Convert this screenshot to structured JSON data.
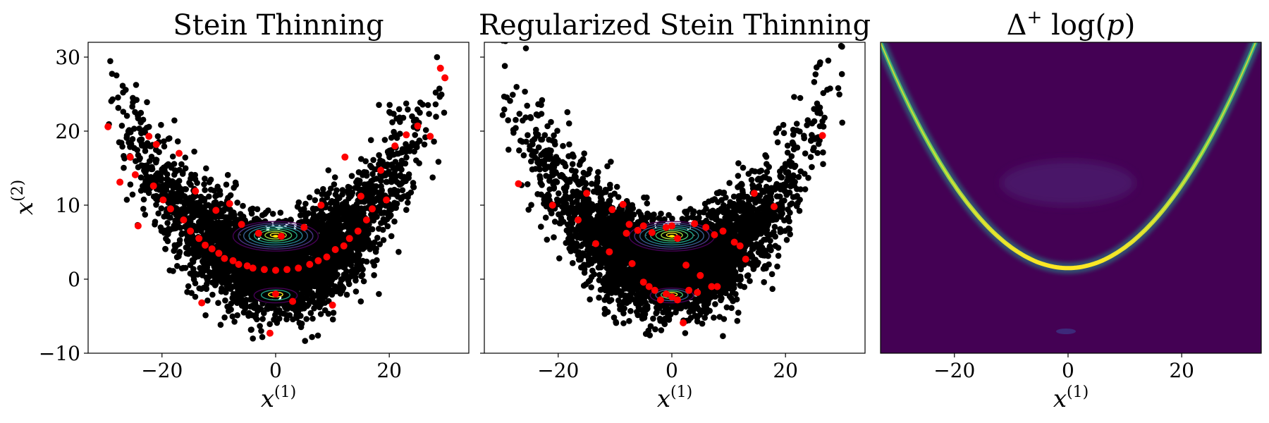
{
  "chart_data": [
    {
      "type": "scatter",
      "title": "Stein Thinning",
      "xlabel": "x",
      "xlabel_sup": "(1)",
      "ylabel": "x",
      "ylabel_sup": "(2)",
      "xlim": [
        -33,
        34
      ],
      "ylim": [
        -10,
        32
      ],
      "xticks": [
        -20,
        0,
        20
      ],
      "yticks": [
        -10,
        0,
        10,
        20,
        30
      ],
      "xtick_labels": [
        "−20",
        "0",
        "20"
      ],
      "ytick_labels": [
        "−10",
        "0",
        "10",
        "20",
        "30"
      ],
      "background_samples": {
        "color": "#000000",
        "shape": "banana",
        "curve": "y = 0.028 * x^2 + 1.5",
        "count_estimate": 4000,
        "arms_x_range": [
          -30,
          30
        ]
      },
      "selected_points": {
        "color": "#ff0000",
        "points": [
          [
            -29.5,
            20.6
          ],
          [
            -27.4,
            13.1
          ],
          [
            -25.6,
            16.5
          ],
          [
            -24.7,
            14.1
          ],
          [
            -24.2,
            7.2
          ],
          [
            -22.3,
            19.3
          ],
          [
            -21.5,
            12.6
          ],
          [
            -21.0,
            18.2
          ],
          [
            -19.8,
            10.7
          ],
          [
            -18.5,
            9.5
          ],
          [
            -17.0,
            17.0
          ],
          [
            -16.2,
            8.0
          ],
          [
            -15.0,
            6.5
          ],
          [
            -14.1,
            11.9
          ],
          [
            -13.5,
            5.5
          ],
          [
            -13.0,
            -3.2
          ],
          [
            -12.4,
            4.6
          ],
          [
            -11.2,
            4.1
          ],
          [
            -10.5,
            9.3
          ],
          [
            -10.0,
            3.5
          ],
          [
            -9.0,
            2.8
          ],
          [
            -8.1,
            10.2
          ],
          [
            -7.5,
            2.5
          ],
          [
            -6.5,
            2.0
          ],
          [
            -6.0,
            7.4
          ],
          [
            -5.0,
            1.8
          ],
          [
            -4.0,
            1.5
          ],
          [
            -3.0,
            6.2
          ],
          [
            -2.0,
            1.3
          ],
          [
            -1.0,
            -7.3
          ],
          [
            0.0,
            1.2
          ],
          [
            0.0,
            -2.0
          ],
          [
            1.0,
            5.8
          ],
          [
            2.0,
            1.3
          ],
          [
            3.0,
            -3.0
          ],
          [
            4.0,
            1.5
          ],
          [
            5.0,
            7.0
          ],
          [
            6.0,
            2.0
          ],
          [
            7.5,
            2.5
          ],
          [
            8.0,
            10.0
          ],
          [
            9.0,
            3.0
          ],
          [
            10.0,
            -3.5
          ],
          [
            10.5,
            4.0
          ],
          [
            12.0,
            4.5
          ],
          [
            12.2,
            16.5
          ],
          [
            13.0,
            5.5
          ],
          [
            14.5,
            6.5
          ],
          [
            15.0,
            11.2
          ],
          [
            16.0,
            8.0
          ],
          [
            17.0,
            9.5
          ],
          [
            18.5,
            14.7
          ],
          [
            19.5,
            10.7
          ],
          [
            21.0,
            18.0
          ],
          [
            23.0,
            19.5
          ],
          [
            25.0,
            20.7
          ],
          [
            27.2,
            19.3
          ],
          [
            29.0,
            28.5
          ],
          [
            29.8,
            27.2
          ]
        ]
      },
      "contours": {
        "colormap": "viridis",
        "modes": [
          {
            "center": [
              0,
              5.8
            ],
            "rings": 8
          },
          {
            "center": [
              0,
              -2.2
            ],
            "rings": 3
          }
        ]
      }
    },
    {
      "type": "scatter",
      "title": "Regularized Stein Thinning",
      "xlabel": "x",
      "xlabel_sup": "(1)",
      "xlim": [
        -33,
        34
      ],
      "ylim": [
        -10,
        32
      ],
      "xticks": [
        -20,
        0,
        20
      ],
      "yticks": [
        -10,
        0,
        10,
        20,
        30
      ],
      "xtick_labels": [
        "−20",
        "0",
        "20"
      ],
      "background_samples": {
        "color": "#000000",
        "shape": "banana",
        "curve": "y = 0.028 * x^2 + 1.5",
        "count_estimate": 4000,
        "arms_x_range": [
          -30,
          30
        ]
      },
      "selected_points": {
        "color": "#ff0000",
        "points": [
          [
            -27.0,
            12.9
          ],
          [
            -21.0,
            10.0
          ],
          [
            -16.5,
            8.0
          ],
          [
            -15.0,
            11.6
          ],
          [
            -13.4,
            4.8
          ],
          [
            -11.0,
            3.7
          ],
          [
            -10.5,
            9.4
          ],
          [
            -8.6,
            10.1
          ],
          [
            -8.0,
            6.2
          ],
          [
            -7.5,
            7.4
          ],
          [
            -7.0,
            2.1
          ],
          [
            -6.0,
            6.6
          ],
          [
            -5.0,
            7.2
          ],
          [
            -5.0,
            -0.4
          ],
          [
            -4.0,
            -1.0
          ],
          [
            -3.5,
            6.3
          ],
          [
            -3.0,
            -1.5
          ],
          [
            -2.0,
            -2.8
          ],
          [
            -1.0,
            7.0
          ],
          [
            -1.0,
            -2.0
          ],
          [
            0.0,
            7.2
          ],
          [
            0.0,
            -2.4
          ],
          [
            1.0,
            5.5
          ],
          [
            1.0,
            -2.8
          ],
          [
            2.0,
            -5.9
          ],
          [
            2.5,
            1.9
          ],
          [
            3.0,
            -1.5
          ],
          [
            4.0,
            7.5
          ],
          [
            4.5,
            -1.8
          ],
          [
            5.0,
            0.5
          ],
          [
            6.0,
            7.0
          ],
          [
            7.0,
            -1.0
          ],
          [
            7.5,
            6.0
          ],
          [
            8.0,
            -1.0
          ],
          [
            9.0,
            6.5
          ],
          [
            11.0,
            5.0
          ],
          [
            12.0,
            4.5
          ],
          [
            13.0,
            2.7
          ],
          [
            14.5,
            11.6
          ],
          [
            18.0,
            9.8
          ],
          [
            26.5,
            19.4
          ]
        ]
      },
      "contours": {
        "colormap": "viridis",
        "modes": [
          {
            "center": [
              0,
              5.8
            ],
            "rings": 8
          },
          {
            "center": [
              0,
              -2.2
            ],
            "rings": 4
          }
        ]
      }
    },
    {
      "type": "heatmap",
      "title_prefix": "Δ",
      "title_sup": "+",
      "title_suffix": " log(",
      "title_var": "p",
      "title_close": ")",
      "xlabel": "x",
      "xlabel_sup": "(1)",
      "xlim": [
        -33,
        34
      ],
      "ylim": [
        -10,
        32
      ],
      "xticks": [
        -20,
        0,
        20
      ],
      "xtick_labels": [
        "−20",
        "0",
        "20"
      ],
      "colormap": "viridis",
      "background_color": "#440154",
      "ridge": {
        "curve": "y = 0.028 * x^2 + 1.5",
        "peak_color": "#fde725"
      },
      "faint_blob": {
        "center": [
          0,
          13
        ],
        "color": "#4a1668"
      }
    }
  ]
}
